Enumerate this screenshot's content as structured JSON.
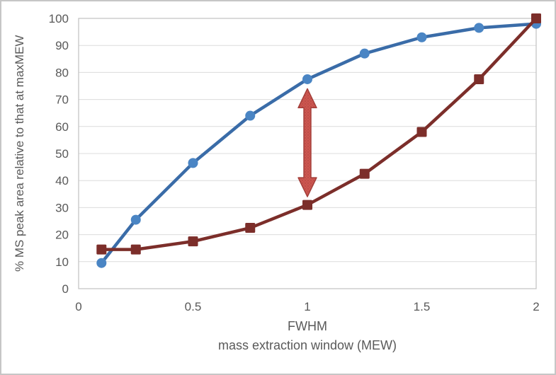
{
  "chart_data": {
    "type": "line",
    "title": "",
    "xlabel_line1": "FWHM",
    "xlabel_line2": "mass extraction window (MEW)",
    "ylabel": "% MS peak area relative to that at maxMEW",
    "xlim": [
      0,
      2
    ],
    "ylim": [
      0,
      100
    ],
    "x_ticks": [
      0,
      0.5,
      1,
      1.5,
      2
    ],
    "y_tick_step": 10,
    "grid": "horizontal-only",
    "legend": "none",
    "x": [
      0.1,
      0.25,
      0.5,
      0.75,
      1,
      1.25,
      1.5,
      1.75,
      2
    ],
    "series": [
      {
        "name": "blue-circle-series",
        "marker": "circle",
        "line_color": "#3a6ca8",
        "marker_color": "#4a85c4",
        "values": [
          9.5,
          25.5,
          46.5,
          64,
          77.5,
          87,
          93,
          96.5,
          98
        ]
      },
      {
        "name": "dark-red-square-series",
        "marker": "square",
        "line_color": "#7c2e2a",
        "marker_color": "#7c2e2a",
        "values": [
          14.5,
          14.5,
          17.5,
          22.5,
          31,
          42.5,
          58,
          77.5,
          100
        ]
      }
    ],
    "annotation_arrow": {
      "type": "double-headed-vertical",
      "x": 1,
      "y_bottom": 34,
      "y_top": 74,
      "fill": "#cd5650",
      "dot_color": "#7e2f2b",
      "stroke": "#a33d38"
    }
  },
  "colors": {
    "text": "#595959",
    "gridline": "#dcdcdc",
    "plot_border": "#c0c0c0",
    "background": "#ffffff"
  }
}
